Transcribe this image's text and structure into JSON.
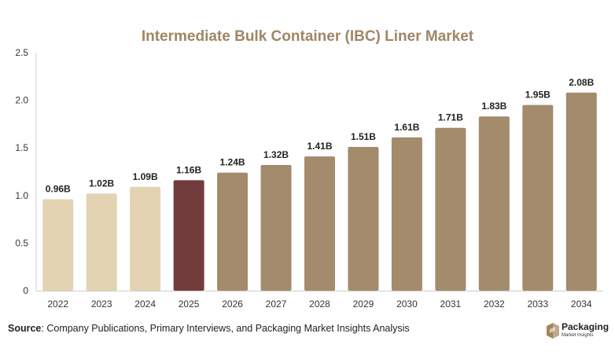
{
  "colors": {
    "title": "#a08566",
    "historical": "#e3d3b3",
    "current": "#733c3c",
    "forecast": "#a38b6c",
    "grid": "#e6e6e6",
    "logo": "#a3855a"
  },
  "source": {
    "label": "Source",
    "text": ": Company Publications, Primary Interviews, and Packaging Market Insights Analysis"
  },
  "logo": {
    "name": "Packaging",
    "subtitle": "Market Insights",
    "icon": "box-icon"
  },
  "chart_data": {
    "type": "bar",
    "title": "Intermediate Bulk Container (IBC) Liner Market",
    "xlabel": "",
    "ylabel": "",
    "ylim": [
      0,
      2.5
    ],
    "yticks": [
      "0",
      "0.5",
      "1.0",
      "1.5",
      "2.0",
      "2.5"
    ],
    "grid": "none",
    "categories": [
      "2022",
      "2023",
      "2024",
      "2025",
      "2026",
      "2027",
      "2028",
      "2029",
      "2030",
      "2031",
      "2032",
      "2033",
      "2034"
    ],
    "values": [
      0.96,
      1.02,
      1.09,
      1.16,
      1.24,
      1.32,
      1.41,
      1.51,
      1.61,
      1.71,
      1.83,
      1.95,
      2.08
    ],
    "data_labels": [
      "0.96B",
      "1.02B",
      "1.09B",
      "1.16B",
      "1.24B",
      "1.32B",
      "1.41B",
      "1.51B",
      "1.61B",
      "1.71B",
      "1.83B",
      "1.95B",
      "2.08B"
    ],
    "bar_groups": [
      "historical",
      "historical",
      "historical",
      "current",
      "forecast",
      "forecast",
      "forecast",
      "forecast",
      "forecast",
      "forecast",
      "forecast",
      "forecast",
      "forecast"
    ]
  }
}
